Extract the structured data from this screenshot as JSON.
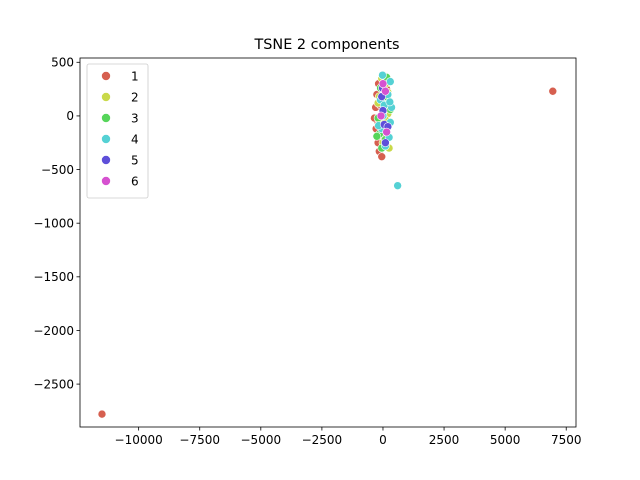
{
  "chart_data": {
    "type": "scatter",
    "title": "TSNE 2 components",
    "xlabel": "",
    "ylabel": "",
    "xlim": [
      -12400,
      7900
    ],
    "ylim": [
      -2900,
      540
    ],
    "xticks": [
      -10000,
      -7500,
      -5000,
      -2500,
      0,
      2500,
      5000,
      7500
    ],
    "xtick_labels": [
      "−10000",
      "−7500",
      "−5000",
      "−2500",
      "0",
      "2500",
      "5000",
      "7500"
    ],
    "yticks": [
      500,
      0,
      -500,
      -1000,
      -1500,
      -2000,
      -2500
    ],
    "ytick_labels": [
      "500",
      "0",
      "−500",
      "−1000",
      "−1500",
      "−2000",
      "−2500"
    ],
    "grid": false,
    "legend_position": "top-left",
    "series": [
      {
        "name": "1",
        "color": "#d65f4f",
        "points": [
          [
            -11500,
            -2780
          ],
          [
            6950,
            230
          ],
          [
            -180,
            300
          ],
          [
            -250,
            200
          ],
          [
            -300,
            80
          ],
          [
            -220,
            -50
          ],
          [
            -280,
            -120
          ],
          [
            -200,
            -250
          ],
          [
            -150,
            -330
          ],
          [
            -50,
            -380
          ],
          [
            0,
            380
          ],
          [
            150,
            250
          ],
          [
            -100,
            100
          ],
          [
            50,
            -200
          ],
          [
            -350,
            -20
          ],
          [
            100,
            160
          ]
        ]
      },
      {
        "name": "2",
        "color": "#c9d94a",
        "points": [
          [
            -50,
            350
          ],
          [
            100,
            300
          ],
          [
            200,
            220
          ],
          [
            -150,
            180
          ],
          [
            50,
            100
          ],
          [
            200,
            20
          ],
          [
            -100,
            -60
          ],
          [
            150,
            -150
          ],
          [
            0,
            -250
          ],
          [
            250,
            -300
          ],
          [
            -200,
            120
          ],
          [
            120,
            -40
          ]
        ]
      },
      {
        "name": "3",
        "color": "#56d55a",
        "points": [
          [
            150,
            360
          ],
          [
            -100,
            260
          ],
          [
            250,
            140
          ],
          [
            0,
            40
          ],
          [
            -200,
            -20
          ],
          [
            200,
            -100
          ],
          [
            -150,
            -170
          ],
          [
            100,
            -220
          ],
          [
            -50,
            -300
          ],
          [
            300,
            60
          ],
          [
            -250,
            -190
          ],
          [
            60,
            180
          ]
        ]
      },
      {
        "name": "4",
        "color": "#55d1d4",
        "points": [
          [
            600,
            -650
          ],
          [
            -20,
            380
          ],
          [
            300,
            320
          ],
          [
            200,
            200
          ],
          [
            -100,
            150
          ],
          [
            350,
            80
          ],
          [
            0,
            0
          ],
          [
            300,
            -60
          ],
          [
            -50,
            -120
          ],
          [
            250,
            -200
          ],
          [
            100,
            -280
          ],
          [
            50,
            100
          ],
          [
            280,
            130
          ],
          [
            -180,
            -90
          ]
        ]
      },
      {
        "name": "5",
        "color": "#5e4fd9",
        "points": [
          [
            -20,
            260
          ],
          [
            0,
            50
          ],
          [
            50,
            -80
          ],
          [
            200,
            -100
          ],
          [
            -50,
            180
          ],
          [
            100,
            -250
          ]
        ]
      },
      {
        "name": "6",
        "color": "#d651d0",
        "points": [
          [
            100,
            230
          ],
          [
            -80,
            0
          ],
          [
            150,
            -150
          ],
          [
            0,
            300
          ]
        ]
      }
    ]
  }
}
